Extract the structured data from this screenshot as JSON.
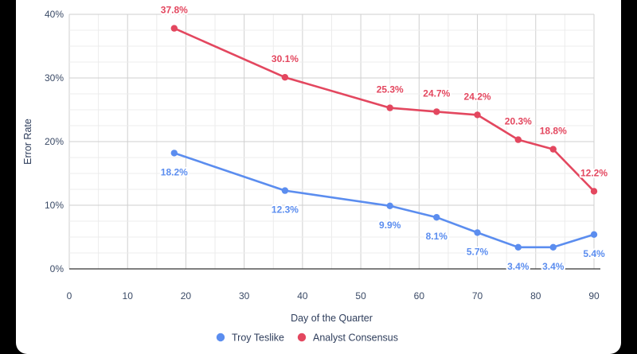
{
  "chart_data": {
    "type": "line",
    "title": "",
    "xlabel": "Day of the Quarter",
    "ylabel": "Error Rate",
    "xlim": [
      0,
      90
    ],
    "ylim": [
      0,
      40
    ],
    "x_ticks": [
      0,
      10,
      20,
      30,
      40,
      50,
      60,
      70,
      80,
      90
    ],
    "y_ticks": [
      0,
      10,
      20,
      30,
      40
    ],
    "y_tick_labels": [
      "0%",
      "10%",
      "20%",
      "30%",
      "40%"
    ],
    "grid": true,
    "legend_position": "bottom",
    "series": [
      {
        "name": "Troy Teslike",
        "color": "#5b8def",
        "x": [
          18,
          37,
          55,
          63,
          70,
          77,
          83,
          90
        ],
        "y": [
          18.2,
          12.3,
          9.9,
          8.1,
          5.7,
          3.4,
          3.4,
          5.4
        ],
        "labels": [
          "18.2%",
          "12.3%",
          "9.9%",
          "8.1%",
          "5.7%",
          "3.4%",
          "3.4%",
          "5.4%"
        ],
        "label_position": "below"
      },
      {
        "name": "Analyst Consensus",
        "color": "#e3475f",
        "x": [
          18,
          37,
          55,
          63,
          70,
          77,
          83,
          90
        ],
        "y": [
          37.8,
          30.1,
          25.3,
          24.7,
          24.2,
          20.3,
          18.8,
          12.2
        ],
        "labels": [
          "37.8%",
          "30.1%",
          "25.3%",
          "24.7%",
          "24.2%",
          "20.3%",
          "18.8%",
          "12.2%"
        ],
        "label_position": "above"
      }
    ]
  }
}
